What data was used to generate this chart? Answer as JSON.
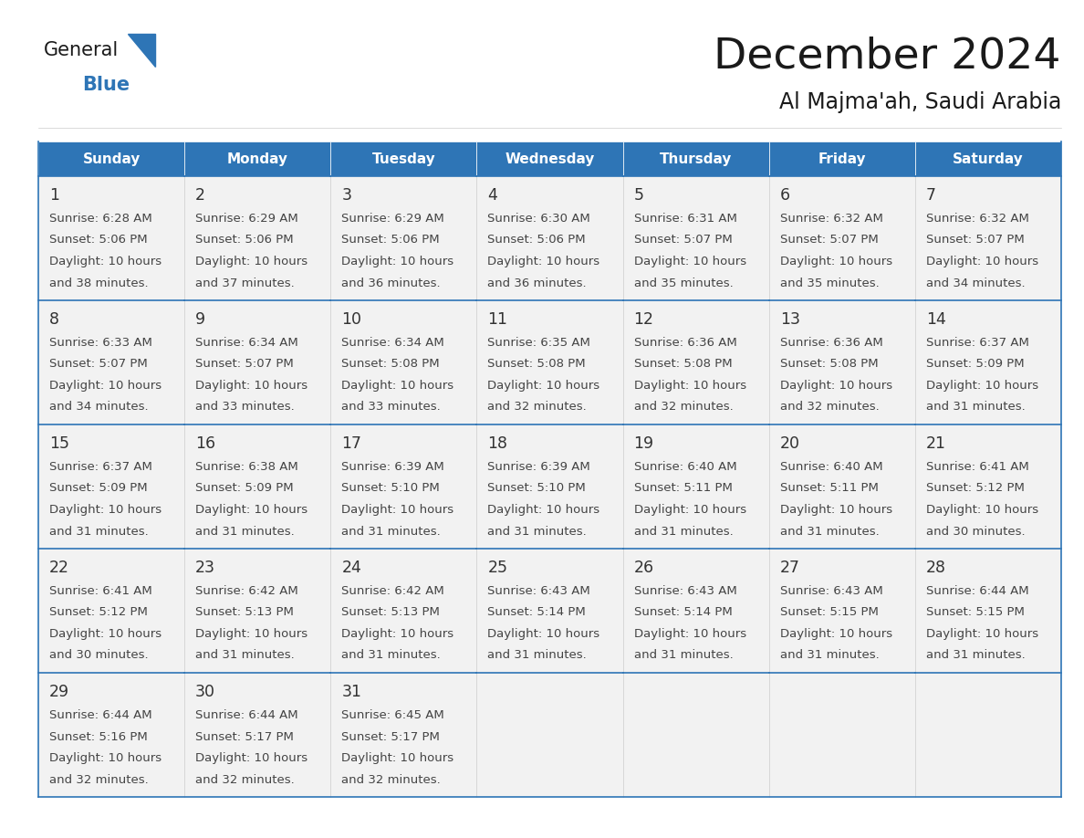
{
  "title": "December 2024",
  "subtitle": "Al Majma'ah, Saudi Arabia",
  "days_of_week": [
    "Sunday",
    "Monday",
    "Tuesday",
    "Wednesday",
    "Thursday",
    "Friday",
    "Saturday"
  ],
  "header_bg": "#2e75b6",
  "header_text_color": "#FFFFFF",
  "cell_bg": "#f2f2f2",
  "cell_border_color": "#2e75b6",
  "cell_border_top_color": "#2e75b6",
  "day_num_color": "#333333",
  "content_color": "#444444",
  "title_color": "#1a1a1a",
  "subtitle_color": "#1a1a1a",
  "logo_general_color": "#1a1a1a",
  "logo_blue_color": "#2e75b6",
  "calendar": [
    [
      {
        "day": 1,
        "sunrise": "6:28 AM",
        "sunset": "5:06 PM",
        "daylight_line1": "Daylight: 10 hours",
        "daylight_line2": "and 38 minutes."
      },
      {
        "day": 2,
        "sunrise": "6:29 AM",
        "sunset": "5:06 PM",
        "daylight_line1": "Daylight: 10 hours",
        "daylight_line2": "and 37 minutes."
      },
      {
        "day": 3,
        "sunrise": "6:29 AM",
        "sunset": "5:06 PM",
        "daylight_line1": "Daylight: 10 hours",
        "daylight_line2": "and 36 minutes."
      },
      {
        "day": 4,
        "sunrise": "6:30 AM",
        "sunset": "5:06 PM",
        "daylight_line1": "Daylight: 10 hours",
        "daylight_line2": "and 36 minutes."
      },
      {
        "day": 5,
        "sunrise": "6:31 AM",
        "sunset": "5:07 PM",
        "daylight_line1": "Daylight: 10 hours",
        "daylight_line2": "and 35 minutes."
      },
      {
        "day": 6,
        "sunrise": "6:32 AM",
        "sunset": "5:07 PM",
        "daylight_line1": "Daylight: 10 hours",
        "daylight_line2": "and 35 minutes."
      },
      {
        "day": 7,
        "sunrise": "6:32 AM",
        "sunset": "5:07 PM",
        "daylight_line1": "Daylight: 10 hours",
        "daylight_line2": "and 34 minutes."
      }
    ],
    [
      {
        "day": 8,
        "sunrise": "6:33 AM",
        "sunset": "5:07 PM",
        "daylight_line1": "Daylight: 10 hours",
        "daylight_line2": "and 34 minutes."
      },
      {
        "day": 9,
        "sunrise": "6:34 AM",
        "sunset": "5:07 PM",
        "daylight_line1": "Daylight: 10 hours",
        "daylight_line2": "and 33 minutes."
      },
      {
        "day": 10,
        "sunrise": "6:34 AM",
        "sunset": "5:08 PM",
        "daylight_line1": "Daylight: 10 hours",
        "daylight_line2": "and 33 minutes."
      },
      {
        "day": 11,
        "sunrise": "6:35 AM",
        "sunset": "5:08 PM",
        "daylight_line1": "Daylight: 10 hours",
        "daylight_line2": "and 32 minutes."
      },
      {
        "day": 12,
        "sunrise": "6:36 AM",
        "sunset": "5:08 PM",
        "daylight_line1": "Daylight: 10 hours",
        "daylight_line2": "and 32 minutes."
      },
      {
        "day": 13,
        "sunrise": "6:36 AM",
        "sunset": "5:08 PM",
        "daylight_line1": "Daylight: 10 hours",
        "daylight_line2": "and 32 minutes."
      },
      {
        "day": 14,
        "sunrise": "6:37 AM",
        "sunset": "5:09 PM",
        "daylight_line1": "Daylight: 10 hours",
        "daylight_line2": "and 31 minutes."
      }
    ],
    [
      {
        "day": 15,
        "sunrise": "6:37 AM",
        "sunset": "5:09 PM",
        "daylight_line1": "Daylight: 10 hours",
        "daylight_line2": "and 31 minutes."
      },
      {
        "day": 16,
        "sunrise": "6:38 AM",
        "sunset": "5:09 PM",
        "daylight_line1": "Daylight: 10 hours",
        "daylight_line2": "and 31 minutes."
      },
      {
        "day": 17,
        "sunrise": "6:39 AM",
        "sunset": "5:10 PM",
        "daylight_line1": "Daylight: 10 hours",
        "daylight_line2": "and 31 minutes."
      },
      {
        "day": 18,
        "sunrise": "6:39 AM",
        "sunset": "5:10 PM",
        "daylight_line1": "Daylight: 10 hours",
        "daylight_line2": "and 31 minutes."
      },
      {
        "day": 19,
        "sunrise": "6:40 AM",
        "sunset": "5:11 PM",
        "daylight_line1": "Daylight: 10 hours",
        "daylight_line2": "and 31 minutes."
      },
      {
        "day": 20,
        "sunrise": "6:40 AM",
        "sunset": "5:11 PM",
        "daylight_line1": "Daylight: 10 hours",
        "daylight_line2": "and 31 minutes."
      },
      {
        "day": 21,
        "sunrise": "6:41 AM",
        "sunset": "5:12 PM",
        "daylight_line1": "Daylight: 10 hours",
        "daylight_line2": "and 30 minutes."
      }
    ],
    [
      {
        "day": 22,
        "sunrise": "6:41 AM",
        "sunset": "5:12 PM",
        "daylight_line1": "Daylight: 10 hours",
        "daylight_line2": "and 30 minutes."
      },
      {
        "day": 23,
        "sunrise": "6:42 AM",
        "sunset": "5:13 PM",
        "daylight_line1": "Daylight: 10 hours",
        "daylight_line2": "and 31 minutes."
      },
      {
        "day": 24,
        "sunrise": "6:42 AM",
        "sunset": "5:13 PM",
        "daylight_line1": "Daylight: 10 hours",
        "daylight_line2": "and 31 minutes."
      },
      {
        "day": 25,
        "sunrise": "6:43 AM",
        "sunset": "5:14 PM",
        "daylight_line1": "Daylight: 10 hours",
        "daylight_line2": "and 31 minutes."
      },
      {
        "day": 26,
        "sunrise": "6:43 AM",
        "sunset": "5:14 PM",
        "daylight_line1": "Daylight: 10 hours",
        "daylight_line2": "and 31 minutes."
      },
      {
        "day": 27,
        "sunrise": "6:43 AM",
        "sunset": "5:15 PM",
        "daylight_line1": "Daylight: 10 hours",
        "daylight_line2": "and 31 minutes."
      },
      {
        "day": 28,
        "sunrise": "6:44 AM",
        "sunset": "5:15 PM",
        "daylight_line1": "Daylight: 10 hours",
        "daylight_line2": "and 31 minutes."
      }
    ],
    [
      {
        "day": 29,
        "sunrise": "6:44 AM",
        "sunset": "5:16 PM",
        "daylight_line1": "Daylight: 10 hours",
        "daylight_line2": "and 32 minutes."
      },
      {
        "day": 30,
        "sunrise": "6:44 AM",
        "sunset": "5:17 PM",
        "daylight_line1": "Daylight: 10 hours",
        "daylight_line2": "and 32 minutes."
      },
      {
        "day": 31,
        "sunrise": "6:45 AM",
        "sunset": "5:17 PM",
        "daylight_line1": "Daylight: 10 hours",
        "daylight_line2": "and 32 minutes."
      },
      null,
      null,
      null,
      null
    ]
  ]
}
